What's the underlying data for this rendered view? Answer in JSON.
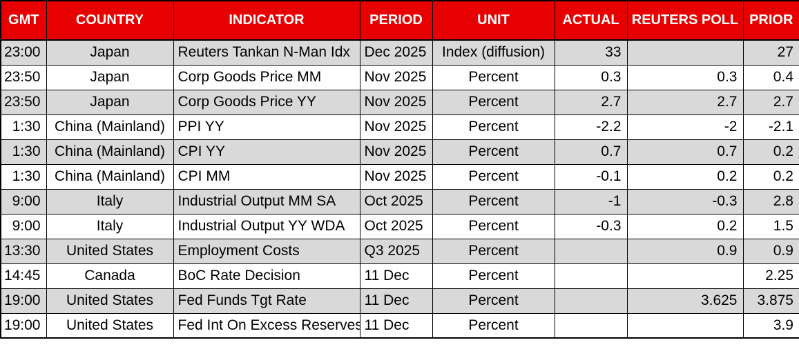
{
  "table": {
    "title": "economic-indicators-calendar",
    "colors": {
      "header_bg": "#e60000",
      "header_text": "#ffffff",
      "row_bg": "#ffffff",
      "row_alt_bg": "#d9d9d9",
      "border": "#000000",
      "text": "#000000"
    },
    "columns": [
      {
        "key": "gmt",
        "label": "GMT",
        "align": "right"
      },
      {
        "key": "country",
        "label": "COUNTRY",
        "align": "center"
      },
      {
        "key": "indicator",
        "label": "INDICATOR",
        "align": "left"
      },
      {
        "key": "period",
        "label": "PERIOD",
        "align": "left"
      },
      {
        "key": "unit",
        "label": "UNIT",
        "align": "center"
      },
      {
        "key": "actual",
        "label": "ACTUAL",
        "align": "right"
      },
      {
        "key": "reuters_poll",
        "label": "REUTERS POLL",
        "align": "right"
      },
      {
        "key": "prior",
        "label": "PRIOR",
        "align": "right"
      }
    ],
    "rows": [
      {
        "gmt": "23:00",
        "country": "Japan",
        "indicator": "Reuters Tankan N-Man Idx",
        "period": "Dec 2025",
        "unit": "Index (diffusion)",
        "actual": "33",
        "reuters_poll": "",
        "prior": "27"
      },
      {
        "gmt": "23:50",
        "country": "Japan",
        "indicator": "Corp Goods Price MM",
        "period": "Nov 2025",
        "unit": "Percent",
        "actual": "0.3",
        "reuters_poll": "0.3",
        "prior": "0.4"
      },
      {
        "gmt": "23:50",
        "country": "Japan",
        "indicator": "Corp Goods Price YY",
        "period": "Nov 2025",
        "unit": "Percent",
        "actual": "2.7",
        "reuters_poll": "2.7",
        "prior": "2.7"
      },
      {
        "gmt": "1:30",
        "country": "China (Mainland)",
        "indicator": "PPI YY",
        "period": "Nov 2025",
        "unit": "Percent",
        "actual": "-2.2",
        "reuters_poll": "-2",
        "prior": "-2.1"
      },
      {
        "gmt": "1:30",
        "country": "China (Mainland)",
        "indicator": "CPI YY",
        "period": "Nov 2025",
        "unit": "Percent",
        "actual": "0.7",
        "reuters_poll": "0.7",
        "prior": "0.2"
      },
      {
        "gmt": "1:30",
        "country": "China (Mainland)",
        "indicator": "CPI MM",
        "period": "Nov 2025",
        "unit": "Percent",
        "actual": "-0.1",
        "reuters_poll": "0.2",
        "prior": "0.2"
      },
      {
        "gmt": "9:00",
        "country": "Italy",
        "indicator": "Industrial Output MM SA",
        "period": "Oct 2025",
        "unit": "Percent",
        "actual": "-1",
        "reuters_poll": "-0.3",
        "prior": "2.8"
      },
      {
        "gmt": "9:00",
        "country": "Italy",
        "indicator": "Industrial Output YY WDA",
        "period": "Oct 2025",
        "unit": "Percent",
        "actual": "-0.3",
        "reuters_poll": "0.2",
        "prior": "1.5"
      },
      {
        "gmt": "13:30",
        "country": "United States",
        "indicator": "Employment Costs",
        "period": "Q3 2025",
        "unit": "Percent",
        "actual": "",
        "reuters_poll": "0.9",
        "prior": "0.9"
      },
      {
        "gmt": "14:45",
        "country": "Canada",
        "indicator": "BoC Rate Decision",
        "period": "11 Dec",
        "unit": "Percent",
        "actual": "",
        "reuters_poll": "",
        "prior": "2.25"
      },
      {
        "gmt": "19:00",
        "country": "United States",
        "indicator": "Fed Funds Tgt Rate",
        "period": "11 Dec",
        "unit": "Percent",
        "actual": "",
        "reuters_poll": "3.625",
        "prior": "3.875"
      },
      {
        "gmt": "19:00",
        "country": "United States",
        "indicator": "Fed Int On Excess Reserves",
        "period": "11 Dec",
        "unit": "Percent",
        "actual": "",
        "reuters_poll": "",
        "prior": "3.9"
      }
    ]
  }
}
